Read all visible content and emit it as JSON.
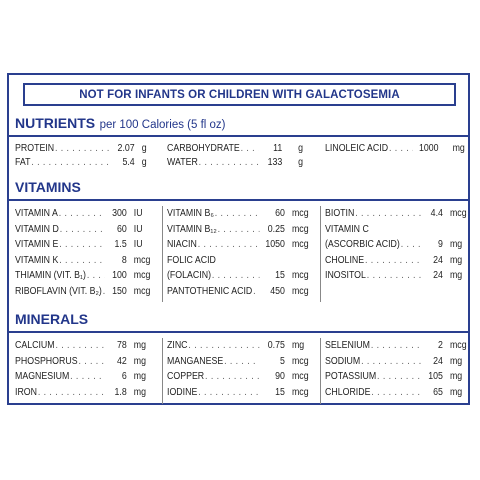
{
  "warning": "NOT FOR INFANTS OR CHILDREN WITH GALACTOSEMIA",
  "nutrients": {
    "heading": "NUTRIENTS",
    "subheading": "per 100 Calories (5 fl oz)",
    "rows": [
      {
        "name": "PROTEIN",
        "value": "2.07",
        "unit": "g"
      },
      {
        "name": "FAT",
        "value": "5.4",
        "unit": "g"
      },
      {
        "name": "CARBOHYDRATE",
        "value": "11",
        "unit": "g"
      },
      {
        "name": "WATER",
        "value": "133",
        "unit": "g"
      },
      {
        "name": "LINOLEIC ACID",
        "value": "1000",
        "unit": "mg"
      }
    ]
  },
  "vitamins": {
    "heading": "VITAMINS",
    "rows": [
      {
        "name": "VITAMIN A",
        "value": "300",
        "unit": "IU"
      },
      {
        "name": "VITAMIN D",
        "value": "60",
        "unit": "IU"
      },
      {
        "name": "VITAMIN E",
        "value": "1.5",
        "unit": "IU"
      },
      {
        "name": "VITAMIN K",
        "value": "8",
        "unit": "mcg"
      },
      {
        "name": "THIAMIN (VIT. B₁)",
        "value": "100",
        "unit": "mcg"
      },
      {
        "name": "RIBOFLAVIN (VIT. B₂)",
        "value": "150",
        "unit": "mcg"
      },
      {
        "name": "VITAMIN B₆",
        "value": "60",
        "unit": "mcg"
      },
      {
        "name": "VITAMIN B₁₂",
        "value": "0.25",
        "unit": "mcg"
      },
      {
        "name": "NIACIN",
        "value": "1050",
        "unit": "mcg"
      },
      {
        "name": "FOLIC ACID",
        "value": "",
        "unit": ""
      },
      {
        "name": "(FOLACIN)",
        "value": "15",
        "unit": "mcg"
      },
      {
        "name": "PANTOTHENIC ACID",
        "value": "450",
        "unit": "mcg"
      },
      {
        "name": "BIOTIN",
        "value": "4.4",
        "unit": "mcg"
      },
      {
        "name": "VITAMIN C",
        "value": "",
        "unit": ""
      },
      {
        "name": "(ASCORBIC ACID)",
        "value": "9",
        "unit": "mg"
      },
      {
        "name": "CHOLINE",
        "value": "24",
        "unit": "mg"
      },
      {
        "name": "INOSITOL",
        "value": "24",
        "unit": "mg"
      }
    ]
  },
  "minerals": {
    "heading": "MINERALS",
    "rows": [
      {
        "name": "CALCIUM",
        "value": "78",
        "unit": "mg"
      },
      {
        "name": "PHOSPHORUS",
        "value": "42",
        "unit": "mg"
      },
      {
        "name": "MAGNESIUM",
        "value": "6",
        "unit": "mg"
      },
      {
        "name": "IRON",
        "value": "1.8",
        "unit": "mg"
      },
      {
        "name": "ZINC",
        "value": "0.75",
        "unit": "mg"
      },
      {
        "name": "MANGANESE",
        "value": "5",
        "unit": "mcg"
      },
      {
        "name": "COPPER",
        "value": "90",
        "unit": "mcg"
      },
      {
        "name": "IODINE",
        "value": "15",
        "unit": "mcg"
      },
      {
        "name": "SELENIUM",
        "value": "2",
        "unit": "mcg"
      },
      {
        "name": "SODIUM",
        "value": "24",
        "unit": "mg"
      },
      {
        "name": "POTASSIUM",
        "value": "105",
        "unit": "mg"
      },
      {
        "name": "CHLORIDE",
        "value": "65",
        "unit": "mg"
      }
    ]
  }
}
